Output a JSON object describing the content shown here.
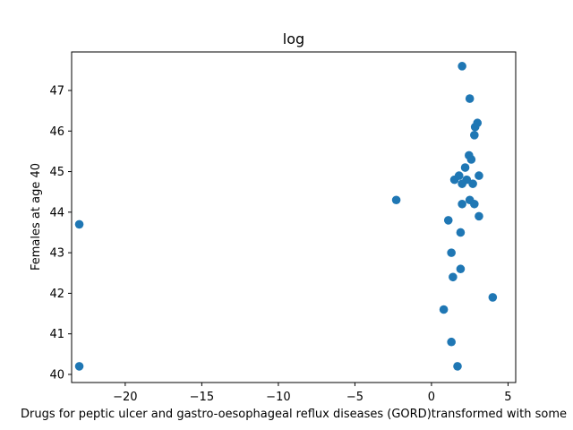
{
  "chart_data": {
    "type": "scatter",
    "title": "log",
    "xlabel": "Drugs for peptic ulcer and gastro-oesophageal reflux diseases (GORD)transformed with some",
    "ylabel": "Females at age 40",
    "xlim": [
      -23.5,
      5.5
    ],
    "ylim": [
      39.8,
      47.95
    ],
    "xticks": [
      -20,
      -15,
      -10,
      -5,
      0,
      5
    ],
    "yticks": [
      40,
      41,
      42,
      43,
      44,
      45,
      46,
      47
    ],
    "xtick_labels": [
      "−20",
      "−15",
      "−10",
      "−5",
      "0",
      "5"
    ],
    "ytick_labels": [
      "40",
      "41",
      "42",
      "43",
      "44",
      "45",
      "46",
      "47"
    ],
    "color": "#1f77b4",
    "grid": false,
    "points": [
      {
        "x": 2.0,
        "y": 47.6
      },
      {
        "x": 2.5,
        "y": 46.8
      },
      {
        "x": 3.0,
        "y": 46.2
      },
      {
        "x": 2.85,
        "y": 46.1
      },
      {
        "x": 2.8,
        "y": 45.9
      },
      {
        "x": 2.45,
        "y": 45.4
      },
      {
        "x": 2.6,
        "y": 45.3
      },
      {
        "x": 2.2,
        "y": 45.1
      },
      {
        "x": 3.1,
        "y": 44.9
      },
      {
        "x": 1.8,
        "y": 44.9
      },
      {
        "x": 1.5,
        "y": 44.8
      },
      {
        "x": 2.3,
        "y": 44.8
      },
      {
        "x": 2.0,
        "y": 44.7
      },
      {
        "x": 2.7,
        "y": 44.7
      },
      {
        "x": 2.5,
        "y": 44.3
      },
      {
        "x": 2.0,
        "y": 44.2
      },
      {
        "x": 2.8,
        "y": 44.2
      },
      {
        "x": -2.3,
        "y": 44.3
      },
      {
        "x": 3.1,
        "y": 43.9
      },
      {
        "x": 1.1,
        "y": 43.8
      },
      {
        "x": -23.0,
        "y": 43.7
      },
      {
        "x": 1.9,
        "y": 43.5
      },
      {
        "x": 1.3,
        "y": 43.0
      },
      {
        "x": 1.9,
        "y": 42.6
      },
      {
        "x": 1.4,
        "y": 42.4
      },
      {
        "x": 4.0,
        "y": 41.9
      },
      {
        "x": 0.8,
        "y": 41.6
      },
      {
        "x": 1.3,
        "y": 40.8
      },
      {
        "x": -23.0,
        "y": 40.2
      },
      {
        "x": 1.7,
        "y": 40.2
      }
    ]
  }
}
